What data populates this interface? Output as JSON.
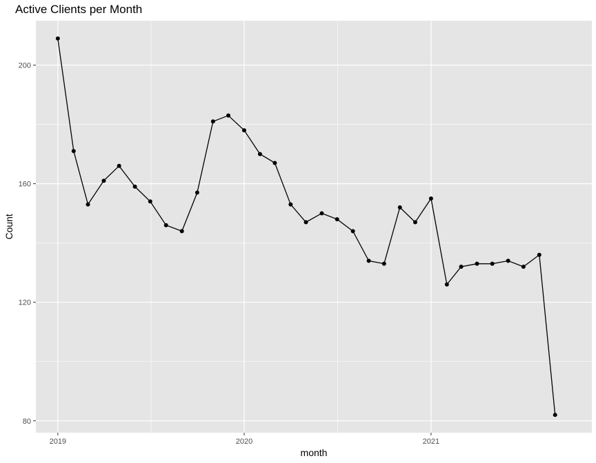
{
  "chart_data": {
    "type": "line",
    "title": "Active Clients per Month",
    "xlabel": "month",
    "ylabel": "Count",
    "x": [
      "2019-01",
      "2019-02",
      "2019-03",
      "2019-04",
      "2019-05",
      "2019-06",
      "2019-07",
      "2019-08",
      "2019-09",
      "2019-10",
      "2019-11",
      "2019-12",
      "2020-01",
      "2020-02",
      "2020-03",
      "2020-04",
      "2020-05",
      "2020-06",
      "2020-07",
      "2020-08",
      "2020-09",
      "2020-10",
      "2020-11",
      "2020-12",
      "2021-01",
      "2021-02",
      "2021-03",
      "2021-04",
      "2021-05",
      "2021-06",
      "2021-07",
      "2021-08",
      "2021-09"
    ],
    "series": [
      {
        "values": [
          209,
          171,
          153,
          161,
          166,
          159,
          154,
          146,
          144,
          157,
          181,
          183,
          178,
          170,
          167,
          153,
          147,
          150,
          148,
          144,
          134,
          133,
          152,
          147,
          155,
          126,
          132,
          133,
          133,
          134,
          132,
          136,
          82
        ]
      }
    ],
    "xticks": [
      "2019",
      "2020",
      "2021"
    ],
    "yticks": [
      80,
      120,
      160,
      200
    ],
    "xlim": [
      "2018-11-19",
      "2021-11-12"
    ],
    "ylim": [
      76,
      215
    ],
    "grid": true,
    "background": "#e5e5e5",
    "grid_color": "#ffffff",
    "line_color": "#000000",
    "point_color": "#000000"
  }
}
